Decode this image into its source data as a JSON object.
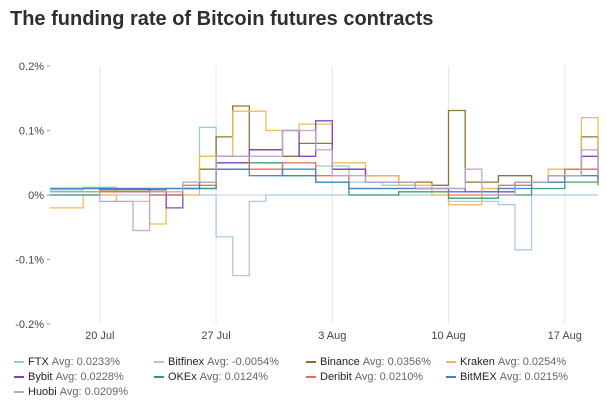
{
  "title": "The funding rate of Bitcoin futures contracts",
  "chart_data": {
    "type": "line",
    "title": "The funding rate of Bitcoin futures contracts",
    "xlabel": "",
    "ylabel": "",
    "x_range": [
      "2020-07-17",
      "2020-08-19"
    ],
    "ylim": [
      -0.2,
      0.2
    ],
    "yticks": [
      {
        "value": 0.2,
        "label": "0.2%"
      },
      {
        "value": 0.1,
        "label": "0.1%"
      },
      {
        "value": 0.0,
        "label": "0%"
      },
      {
        "value": -0.1,
        "label": "-0.1%"
      },
      {
        "value": -0.2,
        "label": "-0.2%"
      }
    ],
    "xticks": [
      {
        "date": "2020-07-20",
        "label": "20 Jul"
      },
      {
        "date": "2020-07-27",
        "label": "27 Jul"
      },
      {
        "date": "2020-08-03",
        "label": "3 Aug"
      },
      {
        "date": "2020-08-10",
        "label": "10 Aug"
      },
      {
        "date": "2020-08-17",
        "label": "17 Aug"
      }
    ],
    "grid": "vertical",
    "legend_position": "bottom",
    "series": [
      {
        "name": "FTX",
        "avg_label": "Avg: 0.0233%",
        "color": "#8fd3b8",
        "points": [
          [
            "2020-07-17",
            0.008
          ],
          [
            "2020-07-19",
            0.012
          ],
          [
            "2020-07-21",
            0.005
          ],
          [
            "2020-07-23",
            0.01
          ],
          [
            "2020-07-25",
            0.02
          ],
          [
            "2020-07-26",
            0.105
          ],
          [
            "2020-07-27",
            0.05
          ],
          [
            "2020-07-29",
            0.04
          ],
          [
            "2020-07-31",
            0.03
          ],
          [
            "2020-08-02",
            0.045
          ],
          [
            "2020-08-04",
            0.02
          ],
          [
            "2020-08-06",
            0.015
          ],
          [
            "2020-08-08",
            0.01
          ],
          [
            "2020-08-10",
            0.005
          ],
          [
            "2020-08-12",
            0.01
          ],
          [
            "2020-08-14",
            0.02
          ],
          [
            "2020-08-16",
            0.03
          ],
          [
            "2020-08-18",
            0.04
          ],
          [
            "2020-08-19",
            0.03
          ]
        ]
      },
      {
        "name": "Bitfinex",
        "avg_label": "Avg: -0.0054%",
        "color": "#a9c7e8",
        "points": [
          [
            "2020-07-17",
            0.0
          ],
          [
            "2020-07-20",
            0.0
          ],
          [
            "2020-07-25",
            0.0
          ],
          [
            "2020-07-27",
            -0.01
          ],
          [
            "2020-07-27",
            -0.065
          ],
          [
            "2020-07-28",
            -0.085
          ],
          [
            "2020-07-28",
            -0.125
          ],
          [
            "2020-07-29",
            -0.01
          ],
          [
            "2020-07-30",
            0.0
          ],
          [
            "2020-08-05",
            0.0
          ],
          [
            "2020-08-10",
            -0.01
          ],
          [
            "2020-08-13",
            -0.015
          ],
          [
            "2020-08-14",
            -0.085
          ],
          [
            "2020-08-15",
            0.0
          ],
          [
            "2020-08-19",
            0.0
          ]
        ]
      },
      {
        "name": "Binance",
        "avg_label": "Avg: 0.0356%",
        "color": "#8a6d2c",
        "points": [
          [
            "2020-07-17",
            0.01
          ],
          [
            "2020-07-20",
            0.008
          ],
          [
            "2020-07-24",
            0.01
          ],
          [
            "2020-07-26",
            0.04
          ],
          [
            "2020-07-27",
            0.09
          ],
          [
            "2020-07-28",
            0.138
          ],
          [
            "2020-07-29",
            0.07
          ],
          [
            "2020-07-31",
            0.06
          ],
          [
            "2020-08-01",
            0.08
          ],
          [
            "2020-08-03",
            0.04
          ],
          [
            "2020-08-05",
            0.03
          ],
          [
            "2020-08-07",
            0.02
          ],
          [
            "2020-08-09",
            0.015
          ],
          [
            "2020-08-10",
            0.131
          ],
          [
            "2020-08-11",
            0.02
          ],
          [
            "2020-08-13",
            0.03
          ],
          [
            "2020-08-15",
            0.02
          ],
          [
            "2020-08-17",
            0.04
          ],
          [
            "2020-08-18",
            0.09
          ],
          [
            "2020-08-19",
            0.06
          ]
        ]
      },
      {
        "name": "Kraken",
        "avg_label": "Avg: 0.0254%",
        "color": "#f2b84b",
        "points": [
          [
            "2020-07-17",
            -0.02
          ],
          [
            "2020-07-19",
            0.0
          ],
          [
            "2020-07-21",
            -0.01
          ],
          [
            "2020-07-23",
            -0.045
          ],
          [
            "2020-07-24",
            0.0
          ],
          [
            "2020-07-26",
            0.06
          ],
          [
            "2020-07-28",
            0.13
          ],
          [
            "2020-07-30",
            0.1
          ],
          [
            "2020-08-01",
            0.11
          ],
          [
            "2020-08-03",
            0.05
          ],
          [
            "2020-08-05",
            0.03
          ],
          [
            "2020-08-07",
            0.015
          ],
          [
            "2020-08-09",
            0.0
          ],
          [
            "2020-08-10",
            -0.015
          ],
          [
            "2020-08-12",
            0.01
          ],
          [
            "2020-08-14",
            0.02
          ],
          [
            "2020-08-16",
            0.04
          ],
          [
            "2020-08-18",
            0.12
          ],
          [
            "2020-08-19",
            0.05
          ]
        ]
      },
      {
        "name": "Bybit",
        "avg_label": "Avg: 0.0228%",
        "color": "#7b3fbf",
        "points": [
          [
            "2020-07-17",
            0.005
          ],
          [
            "2020-07-20",
            0.01
          ],
          [
            "2020-07-23",
            0.005
          ],
          [
            "2020-07-24",
            -0.02
          ],
          [
            "2020-07-25",
            0.01
          ],
          [
            "2020-07-27",
            0.05
          ],
          [
            "2020-07-29",
            0.07
          ],
          [
            "2020-07-31",
            0.1
          ],
          [
            "2020-08-01",
            0.06
          ],
          [
            "2020-08-02",
            0.115
          ],
          [
            "2020-08-03",
            0.04
          ],
          [
            "2020-08-05",
            0.02
          ],
          [
            "2020-08-08",
            0.01
          ],
          [
            "2020-08-11",
            0.005
          ],
          [
            "2020-08-14",
            0.02
          ],
          [
            "2020-08-16",
            0.03
          ],
          [
            "2020-08-18",
            0.06
          ],
          [
            "2020-08-19",
            0.02
          ]
        ]
      },
      {
        "name": "OKEx",
        "avg_label": "Avg: 0.0124%",
        "color": "#2e9e6e",
        "points": [
          [
            "2020-07-17",
            0.0
          ],
          [
            "2020-07-20",
            0.005
          ],
          [
            "2020-07-23",
            0.0
          ],
          [
            "2020-07-25",
            0.01
          ],
          [
            "2020-07-27",
            0.04
          ],
          [
            "2020-07-29",
            0.05
          ],
          [
            "2020-07-31",
            0.03
          ],
          [
            "2020-08-02",
            0.02
          ],
          [
            "2020-08-04",
            0.0
          ],
          [
            "2020-08-07",
            0.005
          ],
          [
            "2020-08-10",
            -0.005
          ],
          [
            "2020-08-13",
            0.0
          ],
          [
            "2020-08-15",
            0.01
          ],
          [
            "2020-08-17",
            0.02
          ],
          [
            "2020-08-19",
            0.015
          ]
        ]
      },
      {
        "name": "Deribit",
        "avg_label": "Avg: 0.0210%",
        "color": "#e8704a",
        "points": [
          [
            "2020-07-17",
            0.01
          ],
          [
            "2020-07-20",
            0.005
          ],
          [
            "2020-07-23",
            0.0
          ],
          [
            "2020-07-25",
            0.015
          ],
          [
            "2020-07-27",
            0.06
          ],
          [
            "2020-07-29",
            0.04
          ],
          [
            "2020-07-31",
            0.05
          ],
          [
            "2020-08-02",
            0.03
          ],
          [
            "2020-08-04",
            0.01
          ],
          [
            "2020-08-07",
            0.01
          ],
          [
            "2020-08-10",
            0.0
          ],
          [
            "2020-08-13",
            0.015
          ],
          [
            "2020-08-15",
            0.02
          ],
          [
            "2020-08-17",
            0.04
          ],
          [
            "2020-08-19",
            0.02
          ]
        ]
      },
      {
        "name": "BitMEX",
        "avg_label": "Avg: 0.0215%",
        "color": "#3d7fd4",
        "points": [
          [
            "2020-07-17",
            0.01
          ],
          [
            "2020-07-20",
            0.01
          ],
          [
            "2020-07-24",
            0.01
          ],
          [
            "2020-07-26",
            0.02
          ],
          [
            "2020-07-27",
            0.04
          ],
          [
            "2020-07-29",
            0.03
          ],
          [
            "2020-07-31",
            0.04
          ],
          [
            "2020-08-02",
            0.02
          ],
          [
            "2020-08-04",
            0.01
          ],
          [
            "2020-08-07",
            0.01
          ],
          [
            "2020-08-10",
            0.005
          ],
          [
            "2020-08-13",
            0.01
          ],
          [
            "2020-08-15",
            0.02
          ],
          [
            "2020-08-17",
            0.03
          ],
          [
            "2020-08-19",
            0.025
          ]
        ]
      },
      {
        "name": "Huobi",
        "avg_label": "Avg: 0.0209%",
        "color": "#b9a6c8",
        "points": [
          [
            "2020-07-17",
            0.005
          ],
          [
            "2020-07-20",
            -0.01
          ],
          [
            "2020-07-22",
            -0.055
          ],
          [
            "2020-07-23",
            0.005
          ],
          [
            "2020-07-25",
            0.02
          ],
          [
            "2020-07-27",
            0.06
          ],
          [
            "2020-07-29",
            0.06
          ],
          [
            "2020-07-31",
            0.1
          ],
          [
            "2020-08-02",
            0.07
          ],
          [
            "2020-08-03",
            0.03
          ],
          [
            "2020-08-05",
            0.02
          ],
          [
            "2020-08-08",
            0.01
          ],
          [
            "2020-08-11",
            0.04
          ],
          [
            "2020-08-12",
            0.0
          ],
          [
            "2020-08-14",
            0.02
          ],
          [
            "2020-08-16",
            0.03
          ],
          [
            "2020-08-18",
            0.07
          ],
          [
            "2020-08-19",
            0.03
          ]
        ]
      }
    ]
  }
}
